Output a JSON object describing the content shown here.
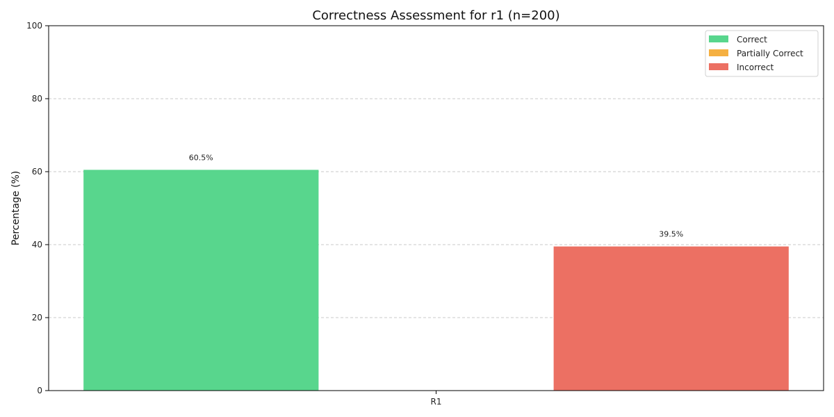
{
  "chart_data": {
    "type": "bar",
    "title": "Correctness Assessment for r1 (n=200)",
    "xlabel": "",
    "ylabel": "Percentage (%)",
    "categories": [
      "R1"
    ],
    "ylim": [
      0,
      100
    ],
    "yticks": [
      0,
      20,
      40,
      60,
      80,
      100
    ],
    "grid": true,
    "legend_position": "top-right",
    "series": [
      {
        "name": "Correct",
        "values": [
          60.5
        ],
        "label": "60.5%",
        "color": "#58d68d"
      },
      {
        "name": "Partially Correct",
        "values": [
          0
        ],
        "label": "",
        "color": "#f5b041"
      },
      {
        "name": "Incorrect",
        "values": [
          39.5
        ],
        "label": "39.5%",
        "color": "#ec7063"
      }
    ]
  }
}
